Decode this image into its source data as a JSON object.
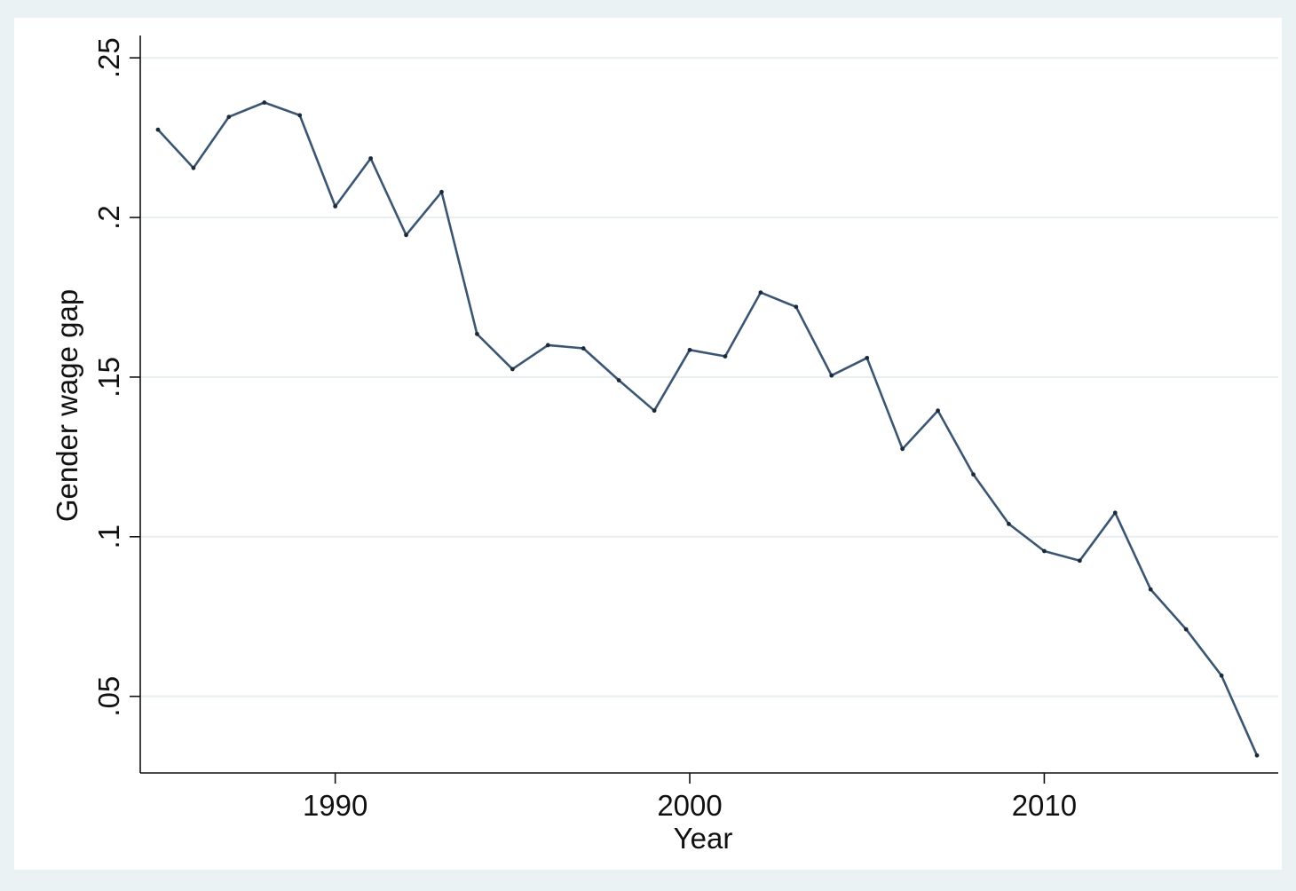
{
  "chart_data": {
    "type": "line",
    "title": "",
    "xlabel": "Year",
    "ylabel": "Gender wage gap",
    "xlim": [
      1984.5,
      2016.6
    ],
    "ylim": [
      0.026,
      0.257
    ],
    "x_ticks": [
      1990,
      2000,
      2010
    ],
    "x_tick_labels": [
      "1990",
      "2000",
      "2010"
    ],
    "y_ticks": [
      0.05,
      0.1,
      0.15,
      0.2,
      0.25
    ],
    "y_tick_labels": [
      ".05",
      ".1",
      ".15",
      ".2",
      ".25"
    ],
    "grid": true,
    "colors": {
      "line": "#3b5672",
      "page_background": "#eaf2f3",
      "plot_background": "#ffffff",
      "grid": "#e9eef0",
      "axis": "#111111"
    },
    "series": [
      {
        "x": [
          1985,
          1986,
          1987,
          1988,
          1989,
          1990,
          1991,
          1992,
          1993,
          1994,
          1995,
          1996,
          1997,
          1998,
          1999,
          2000,
          2001,
          2002,
          2003,
          2004,
          2005,
          2006,
          2007,
          2008,
          2009,
          2010,
          2011,
          2012,
          2013,
          2014,
          2015,
          2016
        ],
        "values": [
          0.2275,
          0.2155,
          0.2315,
          0.236,
          0.232,
          0.2035,
          0.2185,
          0.1945,
          0.208,
          0.1635,
          0.1525,
          0.16,
          0.159,
          0.149,
          0.1395,
          0.1585,
          0.1565,
          0.1765,
          0.172,
          0.1505,
          0.156,
          0.1275,
          0.1395,
          0.1195,
          0.104,
          0.0955,
          0.0925,
          0.1075,
          0.0835,
          0.071,
          0.0565,
          0.0315
        ]
      }
    ]
  }
}
